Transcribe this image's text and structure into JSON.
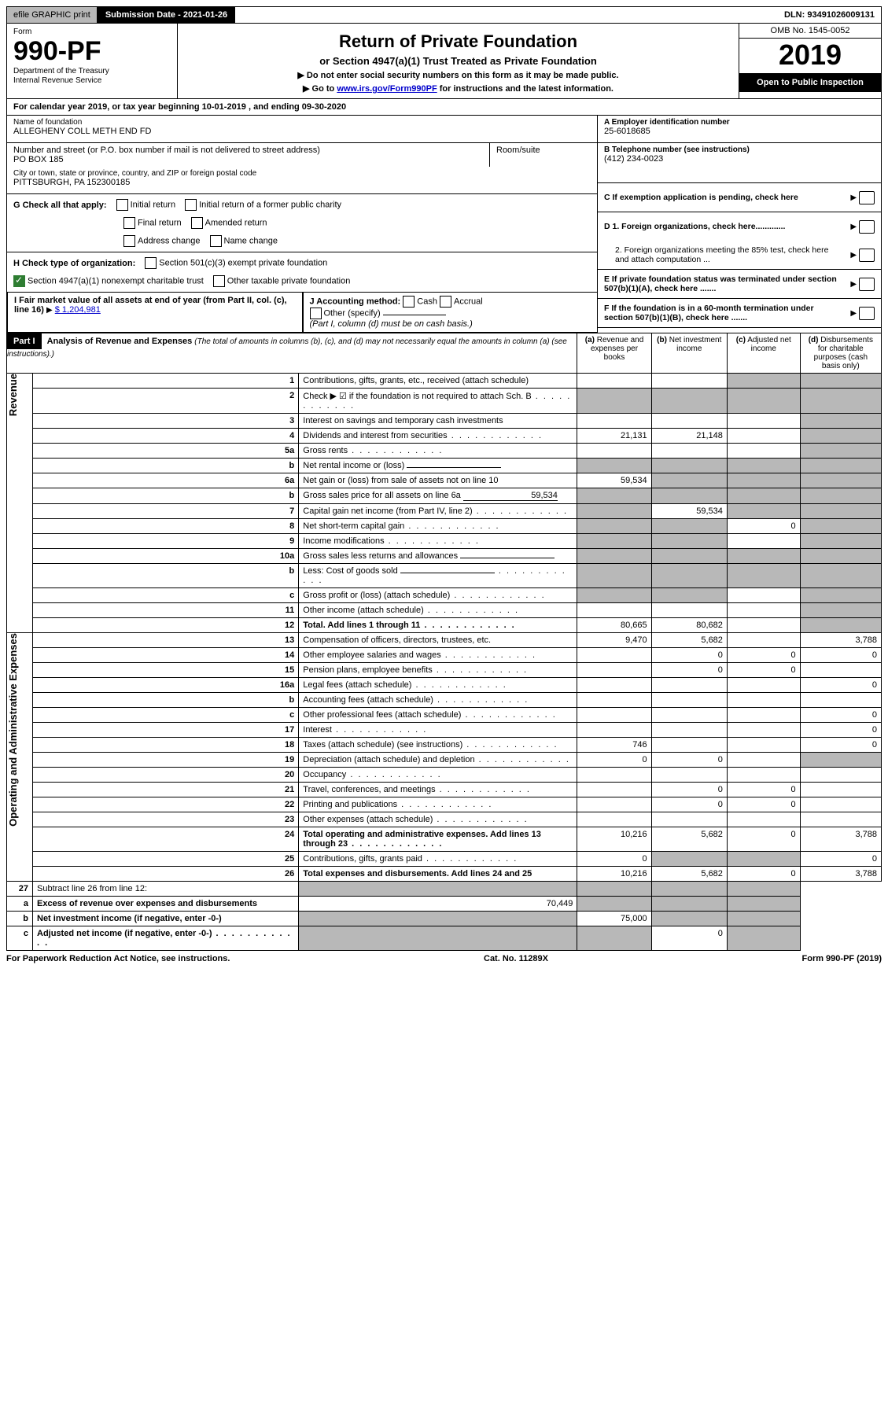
{
  "topbar": {
    "efile": "efile GRAPHIC print",
    "submission": "Submission Date - 2021-01-26",
    "dln": "DLN: 93491026009131"
  },
  "header": {
    "form_label": "Form",
    "form_no": "990-PF",
    "dept": "Department of the Treasury",
    "irs": "Internal Revenue Service",
    "title": "Return of Private Foundation",
    "subtitle": "or Section 4947(a)(1) Trust Treated as Private Foundation",
    "instr1": "▶ Do not enter social security numbers on this form as it may be made public.",
    "instr2_pre": "▶ Go to ",
    "instr2_link": "www.irs.gov/Form990PF",
    "instr2_post": " for instructions and the latest information.",
    "omb": "OMB No. 1545-0052",
    "year": "2019",
    "open": "Open to Public Inspection"
  },
  "cal": "For calendar year 2019, or tax year beginning 10-01-2019              , and ending 09-30-2020",
  "name": {
    "label": "Name of foundation",
    "value": "ALLEGHENY COLL METH END FD"
  },
  "addr": {
    "label": "Number and street (or P.O. box number if mail is not delivered to street address)",
    "value": "PO BOX 185",
    "room_label": "Room/suite"
  },
  "city": {
    "label": "City or town, state or province, country, and ZIP or foreign postal code",
    "value": "PITTSBURGH, PA  152300185"
  },
  "ein": {
    "label": "A Employer identification number",
    "value": "25-6018685"
  },
  "tel": {
    "label": "B Telephone number (see instructions)",
    "value": "(412) 234-0023"
  },
  "C": "C If exemption application is pending, check here",
  "D1": "D 1. Foreign organizations, check here.............",
  "D2": "2. Foreign organizations meeting the 85% test, check here and attach computation ...",
  "E": "E  If private foundation status was terminated under section 507(b)(1)(A), check here .......",
  "F": "F  If the foundation is in a 60-month termination under section 507(b)(1)(B), check here .......",
  "G": {
    "label": "G Check all that apply:",
    "opts": [
      "Initial return",
      "Initial return of a former public charity",
      "Final return",
      "Amended return",
      "Address change",
      "Name change"
    ]
  },
  "H": {
    "label": "H Check type of organization:",
    "opt1": "Section 501(c)(3) exempt private foundation",
    "opt2": "Section 4947(a)(1) nonexempt charitable trust",
    "opt3": "Other taxable private foundation"
  },
  "I": {
    "label": "I Fair market value of all assets at end of year (from Part II, col. (c), line 16)",
    "value": "$  1,204,981"
  },
  "J": {
    "label": "J Accounting method:",
    "cash": "Cash",
    "accrual": "Accrual",
    "other": "Other (specify)",
    "note": "(Part I, column (d) must be on cash basis.)"
  },
  "partI": {
    "title": "Part I",
    "heading": "Analysis of Revenue and Expenses",
    "sub": "(The total of amounts in columns (b), (c), and (d) may not necessarily equal the amounts in column (a) (see instructions).)",
    "colA": "Revenue and expenses per books",
    "colB": "Net investment income",
    "colC": "Adjusted net income",
    "colD": "Disbursements for charitable purposes (cash basis only)"
  },
  "sections": {
    "revenue": "Revenue",
    "expenses": "Operating and Administrative Expenses"
  },
  "rows": [
    {
      "n": "1",
      "d": "Contributions, gifts, grants, etc., received (attach schedule)",
      "a": "",
      "b": "",
      "c": "sh",
      "dd": "sh"
    },
    {
      "n": "2",
      "d": "Check ▶ ☑ if the foundation is not required to attach Sch. B",
      "a": "sh",
      "b": "sh",
      "c": "sh",
      "dd": "sh",
      "dotted": true
    },
    {
      "n": "3",
      "d": "Interest on savings and temporary cash investments",
      "a": "",
      "b": "",
      "c": "",
      "dd": "sh"
    },
    {
      "n": "4",
      "d": "Dividends and interest from securities",
      "a": "21,131",
      "b": "21,148",
      "c": "",
      "dd": "sh",
      "dotted": true
    },
    {
      "n": "5a",
      "d": "Gross rents",
      "a": "",
      "b": "",
      "c": "",
      "dd": "sh",
      "dotted": true
    },
    {
      "n": "b",
      "d": "Net rental income or (loss)",
      "a": "sh",
      "b": "sh",
      "c": "sh",
      "dd": "sh",
      "line": true
    },
    {
      "n": "6a",
      "d": "Net gain or (loss) from sale of assets not on line 10",
      "a": "59,534",
      "b": "sh",
      "c": "sh",
      "dd": "sh"
    },
    {
      "n": "b",
      "d": "Gross sales price for all assets on line 6a",
      "a": "sh",
      "b": "sh",
      "c": "sh",
      "dd": "sh",
      "line": true,
      "lineval": "59,534"
    },
    {
      "n": "7",
      "d": "Capital gain net income (from Part IV, line 2)",
      "a": "sh",
      "b": "59,534",
      "c": "sh",
      "dd": "sh",
      "dotted": true
    },
    {
      "n": "8",
      "d": "Net short-term capital gain",
      "a": "sh",
      "b": "sh",
      "c": "0",
      "dd": "sh",
      "dotted": true
    },
    {
      "n": "9",
      "d": "Income modifications",
      "a": "sh",
      "b": "sh",
      "c": "",
      "dd": "sh",
      "dotted": true
    },
    {
      "n": "10a",
      "d": "Gross sales less returns and allowances",
      "a": "sh",
      "b": "sh",
      "c": "sh",
      "dd": "sh",
      "line": true
    },
    {
      "n": "b",
      "d": "Less: Cost of goods sold",
      "a": "sh",
      "b": "sh",
      "c": "sh",
      "dd": "sh",
      "line": true,
      "dotted": true
    },
    {
      "n": "c",
      "d": "Gross profit or (loss) (attach schedule)",
      "a": "sh",
      "b": "sh",
      "c": "",
      "dd": "sh",
      "dotted": true
    },
    {
      "n": "11",
      "d": "Other income (attach schedule)",
      "a": "",
      "b": "",
      "c": "",
      "dd": "sh",
      "dotted": true
    },
    {
      "n": "12",
      "d": "Total. Add lines 1 through 11",
      "a": "80,665",
      "b": "80,682",
      "c": "",
      "dd": "sh",
      "bold": true,
      "dotted": true
    }
  ],
  "exp_rows": [
    {
      "n": "13",
      "d": "Compensation of officers, directors, trustees, etc.",
      "a": "9,470",
      "b": "5,682",
      "c": "",
      "dd": "3,788"
    },
    {
      "n": "14",
      "d": "Other employee salaries and wages",
      "a": "",
      "b": "0",
      "c": "0",
      "dd": "0",
      "dotted": true
    },
    {
      "n": "15",
      "d": "Pension plans, employee benefits",
      "a": "",
      "b": "0",
      "c": "0",
      "dd": "",
      "dotted": true
    },
    {
      "n": "16a",
      "d": "Legal fees (attach schedule)",
      "a": "",
      "b": "",
      "c": "",
      "dd": "0",
      "dotted": true
    },
    {
      "n": "b",
      "d": "Accounting fees (attach schedule)",
      "a": "",
      "b": "",
      "c": "",
      "dd": "",
      "dotted": true
    },
    {
      "n": "c",
      "d": "Other professional fees (attach schedule)",
      "a": "",
      "b": "",
      "c": "",
      "dd": "0",
      "dotted": true
    },
    {
      "n": "17",
      "d": "Interest",
      "a": "",
      "b": "",
      "c": "",
      "dd": "0",
      "dotted": true
    },
    {
      "n": "18",
      "d": "Taxes (attach schedule) (see instructions)",
      "a": "746",
      "b": "",
      "c": "",
      "dd": "0",
      "dotted": true
    },
    {
      "n": "19",
      "d": "Depreciation (attach schedule) and depletion",
      "a": "0",
      "b": "0",
      "c": "",
      "dd": "sh",
      "dotted": true
    },
    {
      "n": "20",
      "d": "Occupancy",
      "a": "",
      "b": "",
      "c": "",
      "dd": "",
      "dotted": true
    },
    {
      "n": "21",
      "d": "Travel, conferences, and meetings",
      "a": "",
      "b": "0",
      "c": "0",
      "dd": "",
      "dotted": true
    },
    {
      "n": "22",
      "d": "Printing and publications",
      "a": "",
      "b": "0",
      "c": "0",
      "dd": "",
      "dotted": true
    },
    {
      "n": "23",
      "d": "Other expenses (attach schedule)",
      "a": "",
      "b": "",
      "c": "",
      "dd": "",
      "dotted": true
    },
    {
      "n": "24",
      "d": "Total operating and administrative expenses. Add lines 13 through 23",
      "a": "10,216",
      "b": "5,682",
      "c": "0",
      "dd": "3,788",
      "bold": true,
      "dotted": true
    },
    {
      "n": "25",
      "d": "Contributions, gifts, grants paid",
      "a": "0",
      "b": "sh",
      "c": "sh",
      "dd": "0",
      "dotted": true
    },
    {
      "n": "26",
      "d": "Total expenses and disbursements. Add lines 24 and 25",
      "a": "10,216",
      "b": "5,682",
      "c": "0",
      "dd": "3,788",
      "bold": true
    }
  ],
  "final_rows": [
    {
      "n": "27",
      "d": "Subtract line 26 from line 12:",
      "a": "sh",
      "b": "sh",
      "c": "sh",
      "dd": "sh"
    },
    {
      "n": "a",
      "d": "Excess of revenue over expenses and disbursements",
      "a": "70,449",
      "b": "sh",
      "c": "sh",
      "dd": "sh",
      "bold": true
    },
    {
      "n": "b",
      "d": "Net investment income (if negative, enter -0-)",
      "a": "sh",
      "b": "75,000",
      "c": "sh",
      "dd": "sh",
      "bold": true
    },
    {
      "n": "c",
      "d": "Adjusted net income (if negative, enter -0-)",
      "a": "sh",
      "b": "sh",
      "c": "0",
      "dd": "sh",
      "bold": true,
      "dotted": true
    }
  ],
  "footer": {
    "left": "For Paperwork Reduction Act Notice, see instructions.",
    "center": "Cat. No. 11289X",
    "right": "Form 990-PF (2019)"
  }
}
